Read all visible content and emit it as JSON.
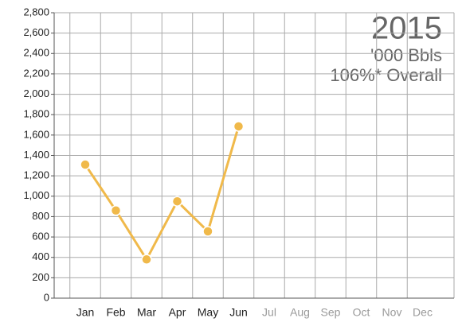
{
  "chart_data": {
    "type": "line",
    "annotations": [
      "2015",
      "'000 Bbls",
      "106%* Overall"
    ],
    "categories": [
      "Jan",
      "Feb",
      "Mar",
      "Apr",
      "May",
      "Jun",
      "Jul",
      "Aug",
      "Sep",
      "Oct",
      "Nov",
      "Dec"
    ],
    "series": [
      {
        "color": "#f0b94a",
        "values": [
          1310,
          860,
          380,
          950,
          655,
          1685,
          null,
          null,
          null,
          null,
          null,
          null
        ]
      }
    ],
    "ylim": [
      0,
      2800
    ],
    "yticks": [
      0,
      200,
      400,
      600,
      800,
      {
        "value": 1000,
        "label": "1,000"
      },
      {
        "value": 1200,
        "label": "1,200"
      },
      {
        "value": 1400,
        "label": "1,400"
      },
      {
        "value": 1600,
        "label": "1,600"
      },
      {
        "value": 1800,
        "label": "1,800"
      },
      {
        "value": 2000,
        "label": "2,000"
      },
      {
        "value": 2200,
        "label": "2,200"
      },
      {
        "value": 2400,
        "label": "2,400"
      },
      {
        "value": 2600,
        "label": "2,600"
      },
      {
        "value": 2800,
        "label": "2,800"
      }
    ],
    "grid": true
  }
}
